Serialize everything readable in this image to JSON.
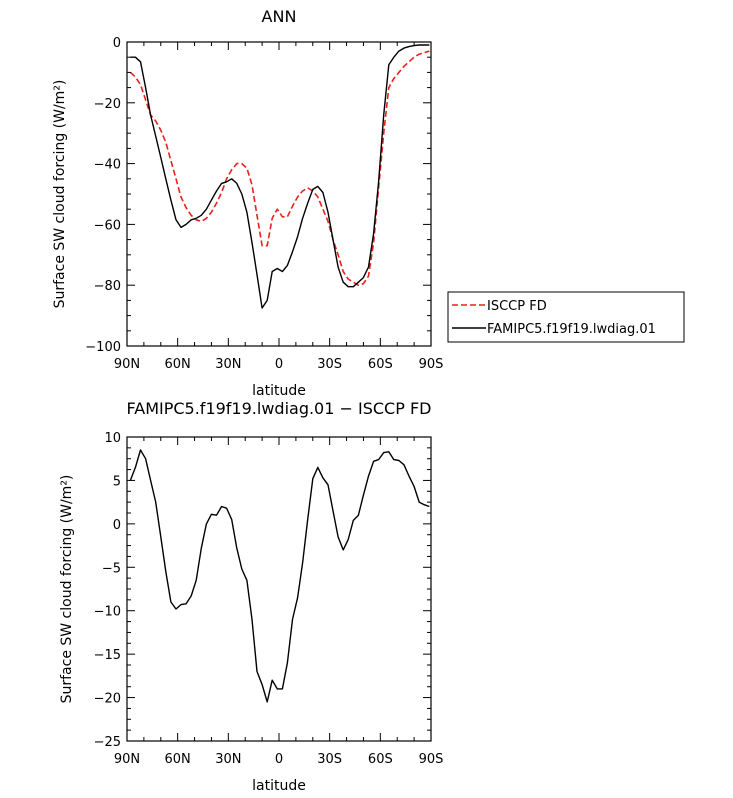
{
  "chart_data": [
    {
      "type": "line",
      "title": "ANN",
      "xlabel": "latitude",
      "ylabel": "Surface SW cloud forcing (W/m²)",
      "ylim": [
        -100,
        0
      ],
      "xlim": [
        -90,
        90
      ],
      "x_direction": "north-to-south",
      "x_tick_values": [
        -90,
        -60,
        -30,
        0,
        30,
        60,
        90
      ],
      "x_tick_labels": [
        "90N",
        "60N",
        "30N",
        "0",
        "30S",
        "60S",
        "90S"
      ],
      "y_tick_values": [
        0,
        -20,
        -40,
        -60,
        -80,
        -100
      ],
      "y_tick_labels": [
        "0",
        "−20",
        "−40",
        "−60",
        "−80",
        "−100"
      ],
      "grid": false,
      "legend_position": "right",
      "series": [
        {
          "name": "ISCCP FD",
          "color": "#e8211c",
          "dash": "dashed",
          "x": [
            -88,
            -85,
            -82,
            -79,
            -76,
            -73,
            -70,
            -67,
            -64,
            -61,
            -58,
            -55,
            -52,
            -49,
            -46,
            -43,
            -40,
            -37,
            -34,
            -31,
            -28,
            -25,
            -22,
            -19,
            -16,
            -13,
            -10,
            -7,
            -4,
            -1,
            2,
            5,
            8,
            11,
            14,
            17,
            20,
            23,
            26,
            29,
            32,
            35,
            38,
            41,
            44,
            47,
            50,
            53,
            56,
            59,
            62,
            65,
            68,
            71,
            74,
            77,
            80,
            83,
            86,
            89
          ],
          "y": [
            -10,
            -11.5,
            -14,
            -19,
            -24,
            -26,
            -29,
            -33,
            -39,
            -45,
            -51,
            -54.5,
            -57,
            -58.5,
            -59,
            -58,
            -56,
            -53,
            -49.5,
            -45,
            -42,
            -40,
            -40,
            -41.5,
            -47,
            -57,
            -67,
            -67,
            -58,
            -55,
            -57.5,
            -57.5,
            -54,
            -51,
            -49,
            -48,
            -49,
            -51,
            -55,
            -59,
            -65,
            -70,
            -75.5,
            -78,
            -79,
            -80,
            -79.5,
            -77,
            -66,
            -48,
            -30,
            -15,
            -12,
            -10,
            -8,
            -6.5,
            -5,
            -4,
            -3.5,
            -3
          ]
        },
        {
          "name": "FAMIPC5.f19f19.lwdiag.01",
          "color": "#000000",
          "dash": "solid",
          "x": [
            -88,
            -85,
            -82,
            -79,
            -76,
            -73,
            -70,
            -67,
            -64,
            -61,
            -58,
            -55,
            -52,
            -49,
            -46,
            -43,
            -40,
            -37,
            -34,
            -31,
            -28,
            -25,
            -22,
            -19,
            -16,
            -13,
            -10,
            -7,
            -4,
            -1,
            2,
            5,
            8,
            11,
            14,
            17,
            20,
            23,
            26,
            29,
            32,
            35,
            38,
            41,
            44,
            47,
            50,
            53,
            56,
            59,
            62,
            65,
            68,
            71,
            74,
            77,
            80,
            83,
            86,
            89
          ],
          "y": [
            -5,
            -5,
            -6.5,
            -15,
            -24,
            -31,
            -38,
            -45,
            -52,
            -58.5,
            -61,
            -60,
            -58.5,
            -58,
            -57,
            -55,
            -52,
            -49,
            -46.5,
            -46,
            -45,
            -46.5,
            -50,
            -56,
            -66,
            -76.5,
            -87.5,
            -85,
            -75.5,
            -74.5,
            -75.5,
            -73.5,
            -69,
            -64,
            -58,
            -53,
            -48.5,
            -47.5,
            -49.5,
            -56,
            -65,
            -74,
            -79,
            -80.5,
            -80.5,
            -79,
            -77.5,
            -74,
            -63,
            -46,
            -24,
            -7.5,
            -5,
            -3,
            -2,
            -1.5,
            -1.2,
            -1,
            -1,
            -1
          ]
        }
      ]
    },
    {
      "type": "line",
      "title": "FAMIPC5.f19f19.lwdiag.01 − ISCCP FD",
      "xlabel": "latitude",
      "ylabel": "Surface SW cloud forcing (W/m²)",
      "ylim": [
        -25,
        10
      ],
      "xlim": [
        -90,
        90
      ],
      "x_direction": "north-to-south",
      "x_tick_values": [
        -90,
        -60,
        -30,
        0,
        30,
        60,
        90
      ],
      "x_tick_labels": [
        "90N",
        "60N",
        "30N",
        "0",
        "30S",
        "60S",
        "90S"
      ],
      "y_tick_values": [
        10,
        5,
        0,
        -5,
        -10,
        -15,
        -20,
        -25
      ],
      "y_tick_labels": [
        "10",
        "5",
        "0",
        "−5",
        "−10",
        "−15",
        "−20",
        "−25"
      ],
      "grid": false,
      "series": [
        {
          "color": "#000000",
          "dash": "solid",
          "x": [
            -88,
            -85,
            -82,
            -79,
            -76,
            -73,
            -70,
            -67,
            -64,
            -61,
            -58,
            -55,
            -52,
            -49,
            -46,
            -43,
            -40,
            -37,
            -34,
            -31,
            -28,
            -25,
            -22,
            -19,
            -16,
            -13,
            -10,
            -7,
            -4,
            -1,
            2,
            5,
            8,
            11,
            14,
            17,
            20,
            23,
            26,
            29,
            32,
            35,
            38,
            41,
            44,
            47,
            50,
            53,
            56,
            59,
            62,
            65,
            68,
            71,
            74,
            77,
            80,
            83,
            86,
            89
          ],
          "y": [
            5,
            6.5,
            8.5,
            7.5,
            5,
            2.5,
            -1.5,
            -5.5,
            -9,
            -9.8,
            -9.3,
            -9.2,
            -8.3,
            -6.5,
            -2.8,
            0,
            1.1,
            1,
            2,
            1.8,
            0.5,
            -2.8,
            -5.2,
            -6.5,
            -11,
            -17,
            -18.5,
            -20.5,
            -18,
            -19,
            -19,
            -16,
            -11,
            -8.5,
            -4.5,
            0.5,
            5.2,
            6.5,
            5.3,
            4.5,
            1.5,
            -1.5,
            -3,
            -1.8,
            0.4,
            1,
            3.3,
            5.5,
            7.2,
            7.4,
            8.2,
            8.3,
            7.4,
            7.3,
            6.8,
            5.5,
            4.3,
            2.5,
            2.2,
            2
          ]
        }
      ]
    }
  ]
}
